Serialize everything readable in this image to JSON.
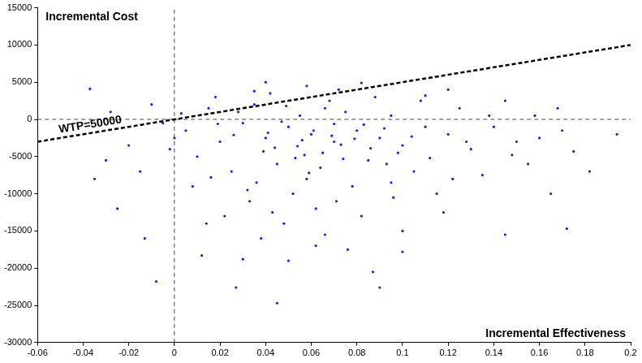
{
  "chart_data": {
    "type": "scatter",
    "x_label": "Incremental Effectiveness",
    "y_label": "Incremental Cost",
    "color": "#1a1aff",
    "marker": "circle",
    "grid": false,
    "xlim": [
      -0.06,
      0.2
    ],
    "ylim": [
      -30000,
      15000
    ],
    "xticks": [
      -0.06,
      -0.04,
      -0.02,
      0,
      0.02,
      0.04,
      0.06,
      0.08,
      0.1,
      0.12,
      0.14,
      0.16,
      0.18,
      0.2
    ],
    "yticks": [
      -30000,
      -25000,
      -20000,
      -15000,
      -10000,
      -5000,
      0,
      5000,
      10000,
      15000
    ],
    "x": [
      0.06,
      0.05,
      0.07,
      0.04,
      0.08,
      0.055,
      0.065,
      0.03,
      0.09,
      0.045,
      0.075,
      0.1,
      0.02,
      0.058,
      0.035,
      0.085,
      0.11,
      0.015,
      0.068,
      0.052,
      0.12,
      0.025,
      0.095,
      0.042,
      0.078,
      0.005,
      0.13,
      0.062,
      0.088,
      0.033,
      0.105,
      0.01,
      0.14,
      0.048,
      0.072,
      0.018,
      0.115,
      -0.005,
      0.15,
      0.038,
      0.082,
      0.098,
      0.028,
      0.064,
      0.125,
      -0.01,
      0.056,
      0.044,
      0.092,
      0.07,
      -0.02,
      0.16,
      0.008,
      0.108,
      0.036,
      0.076,
      0.1,
      0.022,
      0.135,
      -0.015,
      0.145,
      0.058,
      0.066,
      0.05,
      0.118,
      0.0,
      -0.028,
      0.155,
      0.087,
      0.03,
      0.04,
      0.12,
      -0.03,
      0.17,
      0.014,
      0.095,
      0.165,
      0.053,
      0.073,
      0.083,
      0.045,
      -0.008,
      0.027,
      0.09,
      0.194,
      0.182,
      -0.037,
      0.172,
      0.012,
      -0.013,
      0.168,
      -0.035,
      0.175,
      -0.025,
      0.145,
      0.1,
      0.062,
      0.035,
      0.082,
      0.11,
      0.061,
      0.047,
      0.069,
      0.054,
      0.079,
      0.041,
      0.086,
      0.057,
      0.066,
      0.074,
      0.039,
      0.093,
      0.026,
      0.104,
      0.049,
      0.112,
      0.019,
      0.128,
      0.032,
      0.071,
      0.096,
      0.138,
      0.003,
      0.059,
      0.043,
      0.122,
      0.148,
      0.016,
      -0.002,
      0.158
    ],
    "values": [
      -2000,
      -1000,
      -3000,
      -2500,
      -1500,
      500,
      -4500,
      -500,
      -2500,
      -6000,
      1000,
      -3500,
      -3000,
      -8000,
      2000,
      -5500,
      -1000,
      1500,
      2500,
      -10000,
      -2000,
      -7000,
      500,
      3500,
      -9000,
      -1500,
      -4000,
      -12000,
      3000,
      -11000,
      -7000,
      -5000,
      -1000,
      -14000,
      4000,
      3000,
      -10000,
      -500,
      -3000,
      -16000,
      -13000,
      -4500,
      1000,
      -6500,
      1500,
      2000,
      -2800,
      -3800,
      -1200,
      -600,
      -3500,
      -2500,
      -9000,
      2500,
      -8500,
      -17500,
      -15000,
      -13000,
      -7500,
      -7000,
      2500,
      4500,
      -15500,
      -19000,
      -12500,
      -2500,
      1000,
      -6000,
      -20500,
      -18800,
      5000,
      4000,
      -5500,
      -1500,
      -14000,
      -8500,
      -10000,
      -5200,
      -3400,
      -700,
      -24700,
      -21800,
      -22600,
      -22600,
      -2000,
      -7000,
      4100,
      -14700,
      -18300,
      -16000,
      1500,
      -8000,
      -4300,
      -12000,
      -15500,
      -17800,
      -17000,
      3800,
      4900,
      3200,
      -1500,
      -300,
      -2200,
      -3600,
      -2600,
      -1800,
      -3900,
      -4800,
      1500,
      -5300,
      -4300,
      -6000,
      -2100,
      -2300,
      1800,
      -5200,
      -600,
      -3000,
      -9500,
      -11000,
      -10500,
      500,
      800,
      -7200,
      -12500,
      -8000,
      -4800,
      -7800,
      -4000,
      500
    ],
    "lines": [
      {
        "name": "WTP=50000",
        "x": [
          -0.06,
          0.2
        ],
        "values": [
          -3000,
          10000
        ],
        "color": "#000000",
        "line_style": "dashed"
      },
      {
        "x": [
          0,
          0
        ],
        "values": [
          -30000,
          15000
        ],
        "color": "#444444",
        "line_style": "dashed"
      },
      {
        "x": [
          -0.06,
          0.2
        ],
        "values": [
          0,
          0
        ],
        "color": "#444444",
        "line_style": "dashed"
      }
    ]
  }
}
